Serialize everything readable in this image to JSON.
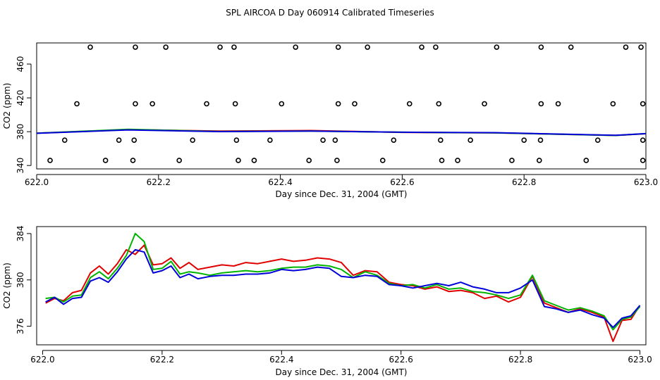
{
  "title": "SPL AIRCOA D  Day 060914  Calibrated Timeseries",
  "colors": {
    "red": "#e00000",
    "green": "#00b400",
    "blue": "#0000d8",
    "black": "#000000"
  },
  "chart_data": [
    {
      "type": "scatter",
      "xlabel": "Day since Dec. 31, 2004 (GMT)",
      "ylabel": "CO2 (ppm)",
      "xlim": [
        622.0,
        623.0
      ],
      "ylim": [
        336,
        485
      ],
      "xticks": [
        622.0,
        622.2,
        622.4,
        622.6,
        622.8,
        623.0
      ],
      "xtick_labels": [
        "622.0",
        "622.2",
        "622.4",
        "622.6",
        "622.8",
        "623.0"
      ],
      "yticks": [
        340,
        380,
        420,
        460
      ],
      "ytick_labels": [
        "340",
        "380",
        "420",
        "460"
      ],
      "points": {
        "x": [
          622.088,
          622.162,
          622.212,
          622.301,
          622.324,
          622.425,
          622.495,
          622.543,
          622.632,
          622.655,
          622.755,
          622.828,
          622.877,
          622.967,
          622.992,
          622.066,
          622.162,
          622.19,
          622.279,
          622.326,
          622.402,
          622.495,
          622.522,
          622.612,
          622.66,
          622.735,
          622.828,
          622.856,
          622.946,
          622.995,
          622.046,
          622.135,
          622.16,
          622.256,
          622.328,
          622.383,
          622.47,
          622.49,
          622.586,
          622.663,
          622.712,
          622.8,
          622.827,
          622.921,
          622.995,
          622.022,
          622.113,
          622.158,
          622.234,
          622.331,
          622.357,
          622.447,
          622.493,
          622.568,
          622.665,
          622.691,
          622.78,
          622.825,
          622.902,
          622.995
        ],
        "y": [
          480,
          480,
          480,
          480,
          480,
          480,
          480,
          480,
          480,
          480,
          480,
          480,
          480,
          480,
          480,
          413,
          413,
          413,
          413,
          413,
          413,
          413,
          413,
          413,
          413,
          413,
          413,
          413,
          413,
          413,
          370,
          370,
          370,
          370,
          370,
          370,
          370,
          370,
          370,
          370,
          370,
          370,
          370,
          370,
          370,
          346,
          346,
          346,
          346,
          346,
          346,
          346,
          346,
          346,
          346,
          346,
          346,
          346,
          346,
          346
        ]
      },
      "series": [
        {
          "name": "red",
          "color": "#e00000",
          "x": [
            622.0,
            622.15,
            622.3,
            622.45,
            622.6,
            622.75,
            622.95,
            623.0
          ],
          "y": [
            378.2,
            382.4,
            380.8,
            381.4,
            379.2,
            378.6,
            375.6,
            377.6
          ]
        },
        {
          "name": "green",
          "color": "#00b400",
          "x": [
            622.0,
            622.15,
            622.3,
            622.45,
            622.6,
            622.75,
            622.95,
            623.0
          ],
          "y": [
            378.3,
            382.8,
            380.2,
            380.8,
            379.4,
            378.6,
            375.5,
            377.7
          ]
        },
        {
          "name": "blue",
          "color": "#0000d8",
          "x": [
            622.0,
            622.15,
            622.3,
            622.45,
            622.6,
            622.75,
            622.95,
            623.0
          ],
          "y": [
            378.1,
            382.1,
            380.1,
            380.7,
            379.4,
            378.9,
            375.7,
            377.7
          ]
        }
      ]
    },
    {
      "type": "line",
      "xlabel": "Day since Dec. 31, 2004 (GMT)",
      "ylabel": "CO2 (ppm)",
      "xlim": [
        621.99,
        623.01
      ],
      "ylim": [
        374.4,
        384.6
      ],
      "xticks": [
        622.0,
        622.2,
        622.4,
        622.6,
        622.8,
        623.0
      ],
      "xtick_labels": [
        "622.0",
        "622.2",
        "622.4",
        "622.6",
        "622.8",
        "623.0"
      ],
      "yticks": [
        376,
        380,
        384
      ],
      "ytick_labels": [
        "376",
        "380",
        "384"
      ],
      "x": [
        622.005,
        622.02,
        622.035,
        622.05,
        622.065,
        622.08,
        622.095,
        622.11,
        622.125,
        622.14,
        622.155,
        622.17,
        622.185,
        622.2,
        622.215,
        622.23,
        622.245,
        622.26,
        622.28,
        622.3,
        622.32,
        622.34,
        622.36,
        622.38,
        622.4,
        622.42,
        622.44,
        622.46,
        622.48,
        622.5,
        622.52,
        622.54,
        622.56,
        622.58,
        622.6,
        622.62,
        622.64,
        622.66,
        622.68,
        622.7,
        622.72,
        622.74,
        622.76,
        622.78,
        622.8,
        622.82,
        622.84,
        622.86,
        622.88,
        622.9,
        622.92,
        622.94,
        622.955,
        622.97,
        622.985,
        623.0
      ],
      "series": [
        {
          "name": "red",
          "color": "#e00000",
          "values": [
            378.0,
            378.4,
            378.2,
            378.9,
            379.1,
            380.6,
            381.2,
            380.5,
            381.4,
            382.6,
            382.2,
            383.0,
            381.3,
            381.4,
            381.9,
            381.0,
            381.5,
            380.9,
            381.1,
            381.3,
            381.2,
            381.5,
            381.4,
            381.6,
            381.8,
            381.6,
            381.7,
            381.9,
            381.8,
            381.5,
            380.4,
            380.8,
            380.7,
            379.8,
            379.6,
            379.5,
            379.2,
            379.4,
            379.0,
            379.1,
            378.9,
            378.4,
            378.6,
            378.1,
            378.5,
            380.3,
            378.0,
            377.6,
            377.2,
            377.5,
            377.2,
            376.8,
            374.7,
            376.5,
            376.6,
            377.8
          ]
        },
        {
          "name": "green",
          "color": "#00b400",
          "values": [
            378.4,
            378.5,
            378.1,
            378.6,
            378.7,
            380.2,
            380.7,
            380.1,
            381.0,
            382.1,
            384.0,
            383.3,
            380.9,
            381.0,
            381.6,
            380.5,
            380.7,
            380.6,
            380.4,
            380.6,
            380.7,
            380.8,
            380.7,
            380.8,
            381.0,
            381.1,
            381.1,
            381.3,
            381.2,
            380.9,
            380.2,
            380.7,
            380.4,
            379.7,
            379.5,
            379.6,
            379.3,
            379.6,
            379.2,
            379.3,
            379.0,
            378.9,
            378.7,
            378.4,
            378.7,
            380.4,
            378.2,
            377.8,
            377.4,
            377.6,
            377.3,
            376.9,
            375.7,
            376.6,
            376.8,
            377.7
          ]
        },
        {
          "name": "blue",
          "color": "#0000d8",
          "values": [
            378.1,
            378.5,
            377.9,
            378.4,
            378.5,
            379.9,
            380.2,
            379.8,
            380.7,
            381.8,
            382.6,
            382.4,
            380.6,
            380.8,
            381.2,
            380.2,
            380.5,
            380.1,
            380.3,
            380.4,
            380.4,
            380.5,
            380.5,
            380.6,
            380.9,
            380.8,
            380.9,
            381.1,
            381.0,
            380.3,
            380.2,
            380.4,
            380.3,
            379.6,
            379.5,
            379.3,
            379.5,
            379.7,
            379.5,
            379.8,
            379.4,
            379.2,
            378.9,
            378.9,
            379.3,
            380.0,
            377.7,
            377.5,
            377.2,
            377.4,
            377.0,
            376.7,
            375.9,
            376.7,
            376.9,
            377.8
          ]
        }
      ]
    }
  ]
}
